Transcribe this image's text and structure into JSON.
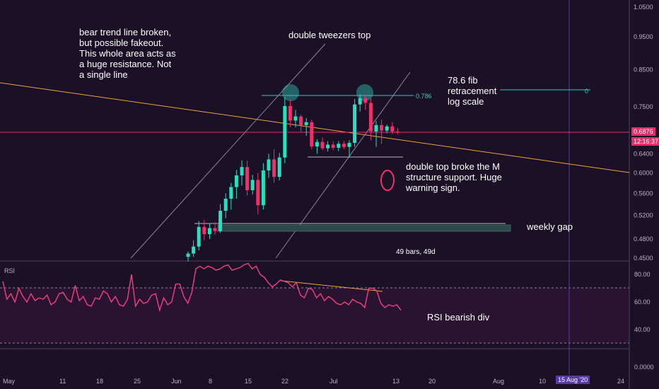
{
  "colors": {
    "background": "#1b1126",
    "rsi_zone": "#2a1330",
    "grid": "#2a2236",
    "axis_text": "#b8b2c4",
    "bull": "#26e0c0",
    "bear": "#f0306a",
    "trendline": "#f0a040",
    "channel": "#8a8598",
    "fib": "#2ec8b8",
    "price_line": "#e0306a",
    "rsi_line": "#f04080",
    "gap_box": "#2a4a4a",
    "date_badge": "#5a3aa0"
  },
  "price_axis": {
    "ticks": [
      "1.0500",
      "0.9500",
      "0.8500",
      "0.7500",
      "0.6400",
      "0.6000",
      "0.5600",
      "0.5200",
      "0.4800",
      "0.4500"
    ],
    "last_price": "0.6876",
    "countdown": "12:16:37",
    "scale": "log"
  },
  "rsi_axis": {
    "ticks": [
      "80.00",
      "60.00",
      "40.00",
      "0.0000"
    ]
  },
  "time_axis": {
    "ticks": [
      "May",
      "11",
      "18",
      "25",
      "Jun",
      "8",
      "15",
      "22",
      "Jul",
      "13",
      "20",
      "Aug",
      "10",
      "24"
    ],
    "highlight": "15 Aug '20"
  },
  "rsi_panel_label": "RSI",
  "annotations": {
    "bear_trend": "bear trend line broken,\nbut possible fakeout.\nThis whole area acts as\na huge resistance. Not\na single line",
    "tweezers": "double tweezers top",
    "fib": "78.6 fib\nretracement\nlog scale",
    "fib_level": "0.786",
    "fib_zero": "0",
    "double_top": "double top broke the M\nstructure support. Huge\nwarning sign.",
    "weekly_gap": "weekly gap",
    "bars_range": "49 bars, 49d",
    "rsi_div": "RSI bearish div"
  },
  "chart_data": {
    "type": "candlestick",
    "y_scale": "log",
    "ylim": [
      0.445,
      1.07
    ],
    "candles": [
      {
        "o": 0.452,
        "h": 0.46,
        "l": 0.445,
        "c": 0.457
      },
      {
        "o": 0.457,
        "h": 0.478,
        "l": 0.452,
        "c": 0.468
      },
      {
        "o": 0.468,
        "h": 0.51,
        "l": 0.462,
        "c": 0.5
      },
      {
        "o": 0.5,
        "h": 0.512,
        "l": 0.478,
        "c": 0.488
      },
      {
        "o": 0.488,
        "h": 0.506,
        "l": 0.48,
        "c": 0.498
      },
      {
        "o": 0.498,
        "h": 0.508,
        "l": 0.487,
        "c": 0.493
      },
      {
        "o": 0.493,
        "h": 0.54,
        "l": 0.49,
        "c": 0.528
      },
      {
        "o": 0.528,
        "h": 0.56,
        "l": 0.515,
        "c": 0.55
      },
      {
        "o": 0.55,
        "h": 0.58,
        "l": 0.53,
        "c": 0.572
      },
      {
        "o": 0.572,
        "h": 0.606,
        "l": 0.55,
        "c": 0.595
      },
      {
        "o": 0.595,
        "h": 0.626,
        "l": 0.575,
        "c": 0.612
      },
      {
        "o": 0.612,
        "h": 0.625,
        "l": 0.556,
        "c": 0.566
      },
      {
        "o": 0.566,
        "h": 0.596,
        "l": 0.558,
        "c": 0.586
      },
      {
        "o": 0.586,
        "h": 0.6,
        "l": 0.522,
        "c": 0.538
      },
      {
        "o": 0.538,
        "h": 0.62,
        "l": 0.53,
        "c": 0.605
      },
      {
        "o": 0.605,
        "h": 0.64,
        "l": 0.59,
        "c": 0.628
      },
      {
        "o": 0.628,
        "h": 0.65,
        "l": 0.58,
        "c": 0.592
      },
      {
        "o": 0.592,
        "h": 0.642,
        "l": 0.585,
        "c": 0.632
      },
      {
        "o": 0.632,
        "h": 0.775,
        "l": 0.62,
        "c": 0.752
      },
      {
        "o": 0.752,
        "h": 0.768,
        "l": 0.7,
        "c": 0.716
      },
      {
        "o": 0.716,
        "h": 0.742,
        "l": 0.7,
        "c": 0.726
      },
      {
        "o": 0.726,
        "h": 0.73,
        "l": 0.69,
        "c": 0.705
      },
      {
        "o": 0.705,
        "h": 0.722,
        "l": 0.68,
        "c": 0.712
      },
      {
        "o": 0.712,
        "h": 0.718,
        "l": 0.65,
        "c": 0.656
      },
      {
        "o": 0.656,
        "h": 0.672,
        "l": 0.64,
        "c": 0.666
      },
      {
        "o": 0.666,
        "h": 0.676,
        "l": 0.648,
        "c": 0.652
      },
      {
        "o": 0.652,
        "h": 0.668,
        "l": 0.645,
        "c": 0.66
      },
      {
        "o": 0.66,
        "h": 0.667,
        "l": 0.648,
        "c": 0.653
      },
      {
        "o": 0.653,
        "h": 0.668,
        "l": 0.646,
        "c": 0.662
      },
      {
        "o": 0.662,
        "h": 0.668,
        "l": 0.65,
        "c": 0.655
      },
      {
        "o": 0.655,
        "h": 0.67,
        "l": 0.632,
        "c": 0.664
      },
      {
        "o": 0.664,
        "h": 0.77,
        "l": 0.655,
        "c": 0.756
      },
      {
        "o": 0.756,
        "h": 0.782,
        "l": 0.738,
        "c": 0.772
      },
      {
        "o": 0.772,
        "h": 0.782,
        "l": 0.742,
        "c": 0.76
      },
      {
        "o": 0.76,
        "h": 0.772,
        "l": 0.67,
        "c": 0.69
      },
      {
        "o": 0.69,
        "h": 0.715,
        "l": 0.655,
        "c": 0.705
      },
      {
        "o": 0.705,
        "h": 0.718,
        "l": 0.662,
        "c": 0.692
      },
      {
        "o": 0.692,
        "h": 0.706,
        "l": 0.686,
        "c": 0.702
      },
      {
        "o": 0.702,
        "h": 0.712,
        "l": 0.684,
        "c": 0.69
      },
      {
        "o": 0.69,
        "h": 0.698,
        "l": 0.684,
        "c": 0.688
      }
    ],
    "rsi": [
      75,
      62,
      66,
      60,
      70,
      64,
      60,
      66,
      61,
      63,
      62,
      65,
      58,
      60,
      66,
      67,
      62,
      60,
      72,
      61,
      64,
      58,
      57,
      63,
      62,
      68,
      66,
      60,
      64,
      58,
      57,
      62,
      80,
      57,
      62,
      59,
      60,
      65,
      66,
      54,
      63,
      58,
      60,
      73,
      73,
      64,
      59,
      67,
      84,
      86,
      84,
      86,
      85,
      83,
      84,
      86,
      87,
      83,
      84,
      85,
      87,
      88,
      84,
      86,
      80,
      78,
      74,
      71,
      73,
      76,
      75,
      74,
      71,
      74,
      65,
      63,
      70,
      69,
      63,
      66,
      61,
      64,
      62,
      59,
      58,
      60,
      58,
      62,
      60,
      59,
      56,
      70,
      70,
      68,
      59,
      56,
      58,
      57,
      58,
      54
    ],
    "fib_level": 0.786,
    "last_price": 0.6876
  }
}
